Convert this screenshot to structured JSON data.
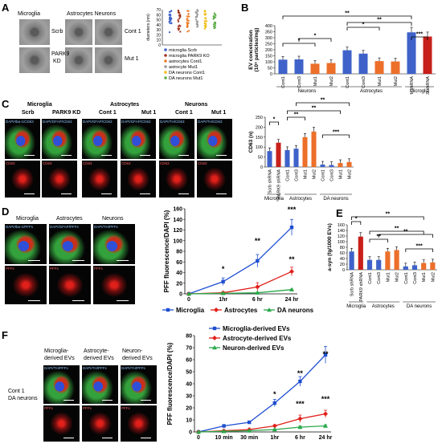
{
  "panels": {
    "A": {
      "letter": "A",
      "col_microglia": "Microglia",
      "col_astro_neuron": "Astrocytes Neurons",
      "row_scrb": "Scrb",
      "row_park9": "PARK9",
      "row_park9b": "KD",
      "row_cont1": "Cont 1",
      "row_mut1": "Mut 1",
      "y_axis": "diameters (nm)",
      "y_ticks": [
        "70",
        "60",
        "50",
        "40",
        "30",
        "20",
        "10",
        "0"
      ],
      "legend": [
        "microglia Scrb",
        "microglia PARK9 KO",
        "astrocytes Cont1",
        "astrocyte Mut1",
        "DA neurons Cont1",
        "DA neurons Mut1"
      ],
      "legend_colors": [
        "#3e62c9",
        "#a0331f",
        "#ec7d2a",
        "#9a9a9a",
        "#f2bf1a",
        "#5fae4a"
      ]
    },
    "B": {
      "letter": "B",
      "y_axis": "EV concetration",
      "y_axis2": "(10⁹ particles/mg)",
      "y_ticks": [
        "400",
        "350",
        "300",
        "250",
        "200",
        "150",
        "100",
        "50",
        "0"
      ],
      "bars": [
        "Cont1",
        "Cont3",
        "Mut1",
        "Mut2",
        "Cont1",
        "Cont3",
        "Mut1",
        "Mut2",
        "Scrb shRNA",
        "PARK9 shRNA"
      ],
      "groups": [
        "Neurons",
        "Astrocytes",
        "Microglia"
      ],
      "stars": [
        "*",
        "*",
        "*",
        "**",
        "**",
        "***"
      ]
    },
    "C": {
      "letter": "C",
      "col_microglia": "Microglia",
      "col_astro": "Astrocytes",
      "col_neurons": "Neurons",
      "sub": [
        "Scrb",
        "PARK9 KD",
        "Cont 1",
        "Mut 1",
        "Cont 1",
        "Mut 1"
      ],
      "ch_top": [
        "DAPI/Iba-1/CD63",
        "DAPI/GFAP/CD63",
        "DAPI/GFAP/CD63",
        "DAPI/GFAP/CD63",
        "DAPI/TH/CD63",
        "DAPI/TH/CD63"
      ],
      "ch_bot": "CD63",
      "y_axis": "CD63 (n)",
      "y_ticks": [
        "250",
        "200",
        "150",
        "100",
        "50",
        "0"
      ],
      "bars": [
        "Scrb shRNA",
        "PARK9 shRNA",
        "Cont1",
        "Cont3",
        "Mut1",
        "Mut2",
        "Cont1",
        "Cont3",
        "Mut1",
        "Mut2"
      ],
      "groups": [
        "Microglia",
        "Astrocytes",
        "DA neurons"
      ],
      "stars": [
        "*",
        "**",
        "**",
        "**",
        "***"
      ]
    },
    "D": {
      "letter": "D",
      "col": [
        "Microglia",
        "Astrocytes",
        "Neurons"
      ],
      "ch_top": [
        "DAPI/Iba-1/PFFs",
        "DAPI/GFAP/PFFs",
        "DAPI/TH/PFFs"
      ],
      "ch_bot": "PFFs",
      "stars": [
        "*",
        "**",
        "***",
        "**",
        "**"
      ]
    },
    "E": {
      "letter": "E",
      "y_axis": "a-syn (fg/1000 EVs)",
      "y_ticks": [
        "160",
        "140",
        "120",
        "100",
        "80",
        "60",
        "40",
        "20",
        "0"
      ],
      "bars": [
        "Scrb shRNA",
        "PARK9 shRNA",
        "Cont1",
        "Cont3",
        "Mut1",
        "Mut2",
        "Cont1",
        "Cont3",
        "Mut1",
        "Mut2"
      ],
      "groups": [
        "Microglia",
        "Astrocytes",
        "DA neurons"
      ],
      "stars": [
        "*",
        "**",
        "**",
        "**",
        "**",
        "***"
      ]
    },
    "F": {
      "letter": "F",
      "col": [
        "Microglia-",
        "derived EVs",
        "Astrocyte-",
        "derived EVs",
        "Neuron-",
        "derived EVs"
      ],
      "row": [
        "Cont 1",
        "DA neurons"
      ],
      "ch_top": [
        "DAPI/TH/PFFs",
        "DAPI/TH/PFFs",
        "DAPI/TH/PFFs"
      ],
      "ch_bot": "PFFs",
      "stars": [
        "*",
        "**",
        "**",
        "***",
        "***"
      ]
    }
  },
  "chart_data": [
    {
      "type": "line",
      "panel": "D",
      "x": [
        "0",
        "1hr",
        "6 hr",
        "24 hr"
      ],
      "ylabel": "PFF fluorescence/DAPI (%)",
      "ylim": [
        0,
        160
      ],
      "yticks": [
        0,
        20,
        40,
        60,
        80,
        100,
        120,
        140,
        160
      ],
      "series": [
        {
          "name": "Microglia",
          "color": "#1f4fd1",
          "marker": "square",
          "values": [
            0,
            23,
            62,
            125
          ],
          "err": [
            0,
            7,
            12,
            15
          ]
        },
        {
          "name": "Astrocytes",
          "color": "#e0201a",
          "marker": "diamond",
          "values": [
            0,
            2,
            13,
            42
          ],
          "err": [
            0,
            2,
            8,
            8
          ]
        },
        {
          "name": "DA neurons",
          "color": "#2aa84a",
          "marker": "triangle",
          "values": [
            0,
            1,
            2,
            8
          ],
          "err": [
            0,
            1,
            1,
            1
          ]
        }
      ]
    },
    {
      "type": "line",
      "panel": "F",
      "x": [
        "0",
        "10 min",
        "30 min",
        "1hr",
        "6 hr",
        "24 hr"
      ],
      "ylabel": "PFF fluorescence/DAPI (%)",
      "ylim": [
        0,
        80
      ],
      "yticks": [
        0,
        10,
        20,
        30,
        40,
        50,
        60,
        70,
        80
      ],
      "series": [
        {
          "name": "Microglia-derived EVs",
          "color": "#1f4fd1",
          "marker": "square",
          "values": [
            0,
            5,
            8,
            24,
            42,
            64
          ],
          "err": [
            0,
            0.5,
            0.5,
            3,
            4,
            7
          ]
        },
        {
          "name": "Astrocyte-derived EVs",
          "color": "#e0201a",
          "marker": "diamond",
          "values": [
            0,
            1,
            2,
            5,
            11,
            15
          ],
          "err": [
            0,
            0.3,
            0.3,
            1,
            3,
            3
          ]
        },
        {
          "name": "Neuron-derived EVs",
          "color": "#2aa84a",
          "marker": "triangle",
          "values": [
            0,
            0.5,
            1,
            2,
            4,
            5
          ],
          "err": [
            0,
            0.2,
            0.2,
            0.5,
            1,
            1
          ]
        }
      ]
    },
    {
      "type": "bar",
      "panel": "B",
      "categories": [
        "Cont1",
        "Cont3",
        "Mut1",
        "Mut2",
        "Cont1",
        "Cont3",
        "Mut1",
        "Mut2",
        "Scrb shRNA",
        "PARK9 shRNA"
      ],
      "values": [
        118,
        120,
        84,
        90,
        196,
        168,
        106,
        103,
        345,
        310
      ],
      "colors": [
        "#3e62c9",
        "#3e62c9",
        "#ec6f2a",
        "#ec6f2a",
        "#3e62c9",
        "#3e62c9",
        "#ec6f2a",
        "#ec6f2a",
        "#3e62c9",
        "#c8201a"
      ],
      "ylim": [
        0,
        400
      ]
    },
    {
      "type": "bar",
      "panel": "C",
      "categories": [
        "Scrb shRNA",
        "PARK9 shRNA",
        "Cont1",
        "Cont3",
        "Mut1",
        "Mut2",
        "Cont1",
        "Cont3",
        "Mut1",
        "Mut2"
      ],
      "values": [
        80,
        122,
        85,
        92,
        150,
        178,
        12,
        10,
        20,
        25
      ],
      "colors": [
        "#3e62c9",
        "#c8201a",
        "#3e62c9",
        "#3e62c9",
        "#ec6f2a",
        "#ec6f2a",
        "#3e62c9",
        "#3e62c9",
        "#ec6f2a",
        "#ec6f2a"
      ],
      "ylim": [
        0,
        250
      ]
    },
    {
      "type": "bar",
      "panel": "E",
      "categories": [
        "Scrb shRNA",
        "PARK9 shRNA",
        "Cont1",
        "Cont3",
        "Mut1",
        "Mut2",
        "Cont1",
        "Cont3",
        "Mut1",
        "Mut2"
      ],
      "values": [
        65,
        118,
        35,
        35,
        65,
        70,
        12,
        16,
        24,
        26
      ],
      "colors": [
        "#3e62c9",
        "#c8201a",
        "#3e62c9",
        "#3e62c9",
        "#ec6f2a",
        "#ec6f2a",
        "#3e62c9",
        "#3e62c9",
        "#ec6f2a",
        "#ec6f2a"
      ],
      "ylim": [
        0,
        160
      ]
    }
  ]
}
